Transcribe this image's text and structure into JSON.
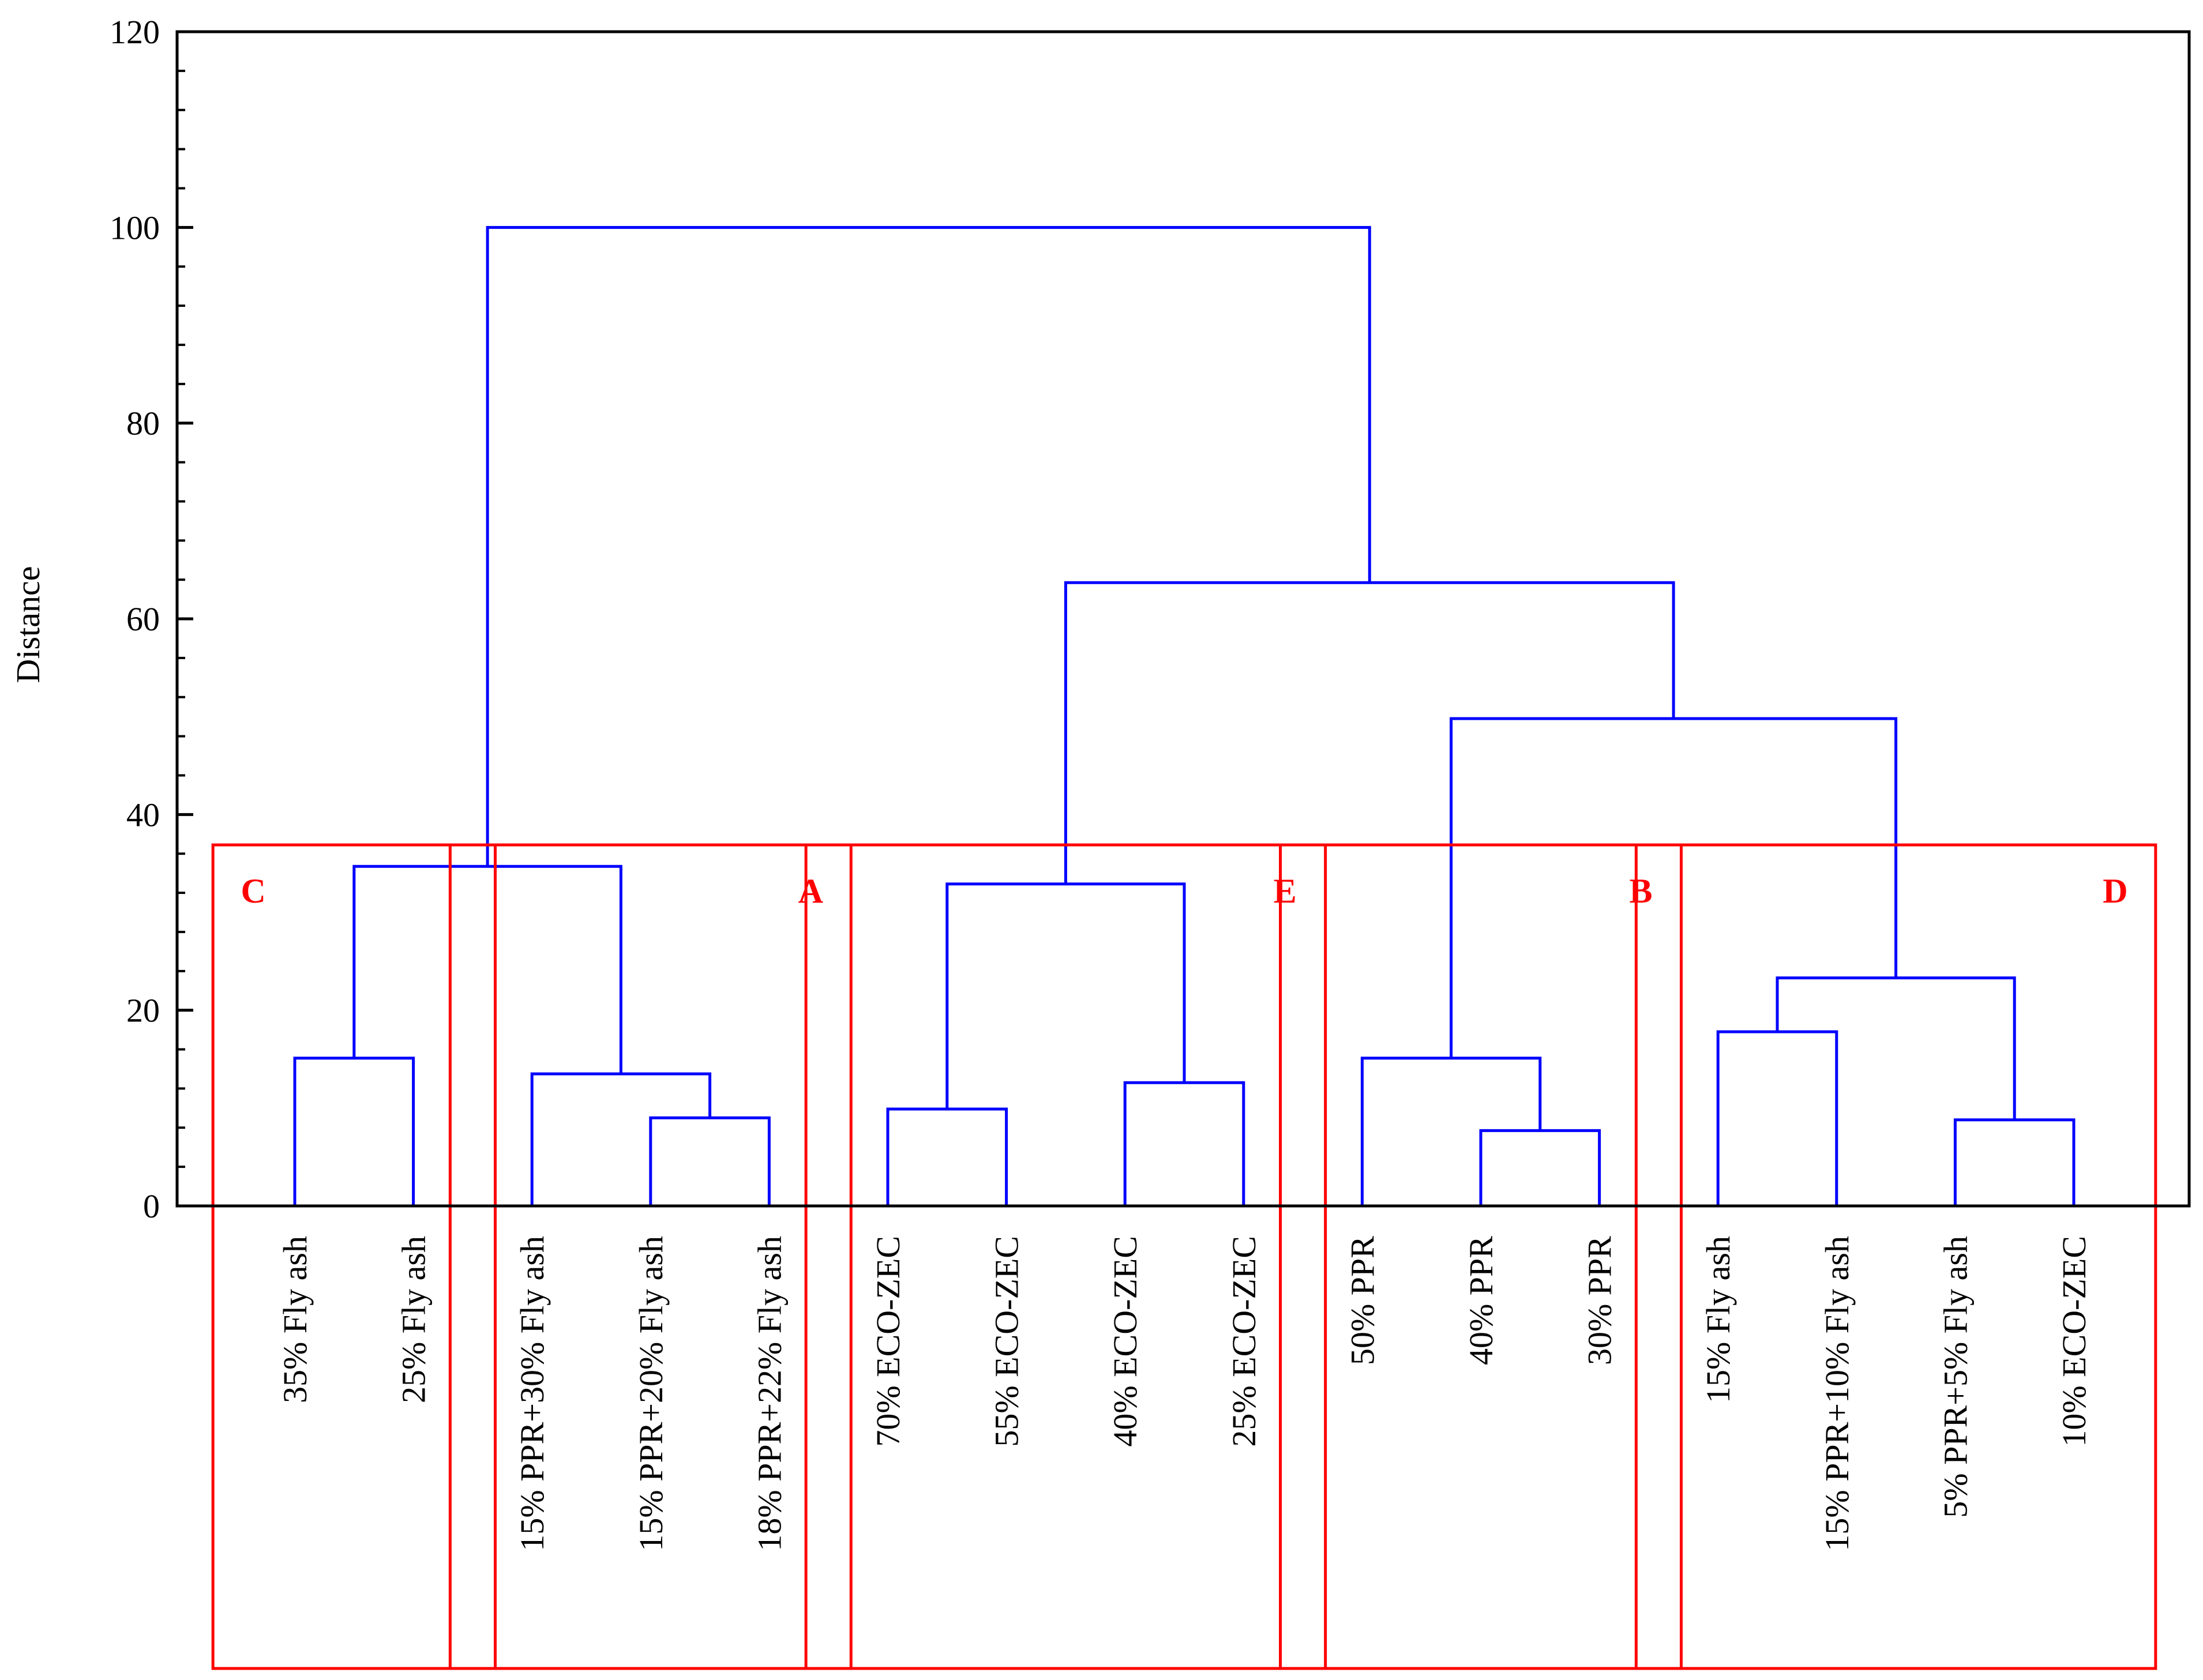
{
  "chart_data": {
    "type": "dendrogram",
    "ylabel": "Distance",
    "ylim": [
      0,
      120
    ],
    "yticks": [
      0,
      20,
      40,
      60,
      80,
      100,
      120
    ],
    "colors": {
      "links": "#0000ff",
      "groups": "#ff0000",
      "axis": "#000000"
    },
    "leaves": [
      "35% Fly ash",
      "25% Fly ash",
      "15% PPR+30% Fly ash",
      "15% PPR+20% Fly ash",
      "18% PPR+22% Fly ash",
      "70% ECO-ZEC",
      "55% ECO-ZEC",
      "40% ECO-ZEC",
      "25% ECO-ZEC",
      "50% PPR",
      "40% PPR",
      "30% PPR",
      "15% Fly ash",
      "15% PPR+10% Fly ash",
      "5% PPR+5% Fly ash",
      "10% ECO-ZEC"
    ],
    "merges": [
      {
        "id": "m1",
        "left": 0,
        "right": 1,
        "height": 15.1
      },
      {
        "id": "m2",
        "left": 3,
        "right": 4,
        "height": 9.0
      },
      {
        "id": "m3",
        "left": 2,
        "right": "m2",
        "height": 13.5
      },
      {
        "id": "m4",
        "left": "m1",
        "right": "m3",
        "height": 34.7
      },
      {
        "id": "m5",
        "left": 5,
        "right": 6,
        "height": 9.9
      },
      {
        "id": "m6",
        "left": 7,
        "right": 8,
        "height": 12.6
      },
      {
        "id": "m7",
        "left": "m5",
        "right": "m6",
        "height": 32.9
      },
      {
        "id": "m8",
        "left": 10,
        "right": 11,
        "height": 7.7
      },
      {
        "id": "m9",
        "left": 9,
        "right": "m8",
        "height": 15.1
      },
      {
        "id": "m10",
        "left": 12,
        "right": 13,
        "height": 17.8
      },
      {
        "id": "m11",
        "left": 14,
        "right": 15,
        "height": 8.8
      },
      {
        "id": "m12",
        "left": "m10",
        "right": "m11",
        "height": 23.3
      },
      {
        "id": "m13",
        "left": "m9",
        "right": "m12",
        "height": 49.8
      },
      {
        "id": "m14",
        "left": "m7",
        "right": "m13",
        "height": 63.7
      },
      {
        "id": "m15",
        "left": "m4",
        "right": "m14",
        "height": 100.0
      }
    ],
    "groups": [
      {
        "label": "C",
        "leaves": [
          0,
          1
        ],
        "label_pos": "left"
      },
      {
        "label": "A",
        "leaves": [
          2,
          3,
          4
        ],
        "label_pos": "right"
      },
      {
        "label": "E",
        "leaves": [
          5,
          6,
          7,
          8
        ],
        "label_pos": "right"
      },
      {
        "label": "B",
        "leaves": [
          9,
          10,
          11
        ],
        "label_pos": "right"
      },
      {
        "label": "D",
        "leaves": [
          12,
          13,
          14,
          15
        ],
        "label_pos": "right"
      }
    ]
  }
}
